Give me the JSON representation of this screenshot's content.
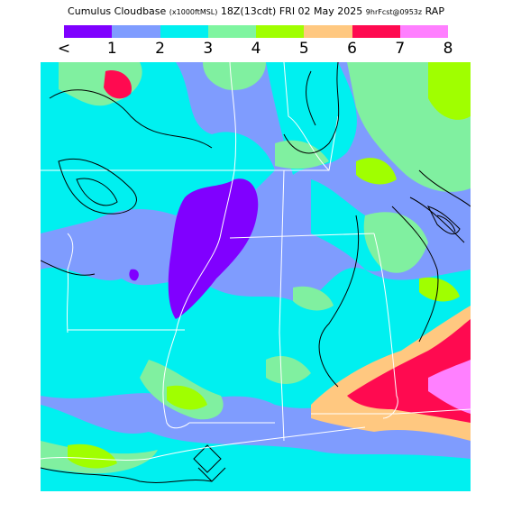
{
  "header": {
    "product": "Cumulus Cloudbase",
    "units": "(x1000ftMSL)",
    "valid": "18Z(13cdt) FRI 02 May 2025",
    "run": "9hrFcst@0953z",
    "model": "RAP"
  },
  "legend": {
    "ticks": [
      "<",
      "1",
      "2",
      "3",
      "4",
      "5",
      "6",
      "7",
      "8"
    ],
    "colors": [
      "#7f00ff",
      "#7f9cff",
      "#00f0f0",
      "#7ff5a0",
      "#a0ff00",
      "#ffc880",
      "#ff0a50",
      "#ff7fff"
    ]
  },
  "map_colors": {
    "lt1": "#8000ff",
    "c1_2": "#7f9cfe",
    "c2_3": "#00f0f0",
    "c3_4": "#80f0a0",
    "c4_5": "#a0ff00",
    "c5_6": "#ffc880",
    "c6_7": "#ff0a50",
    "c7_8": "#ff80ff"
  }
}
